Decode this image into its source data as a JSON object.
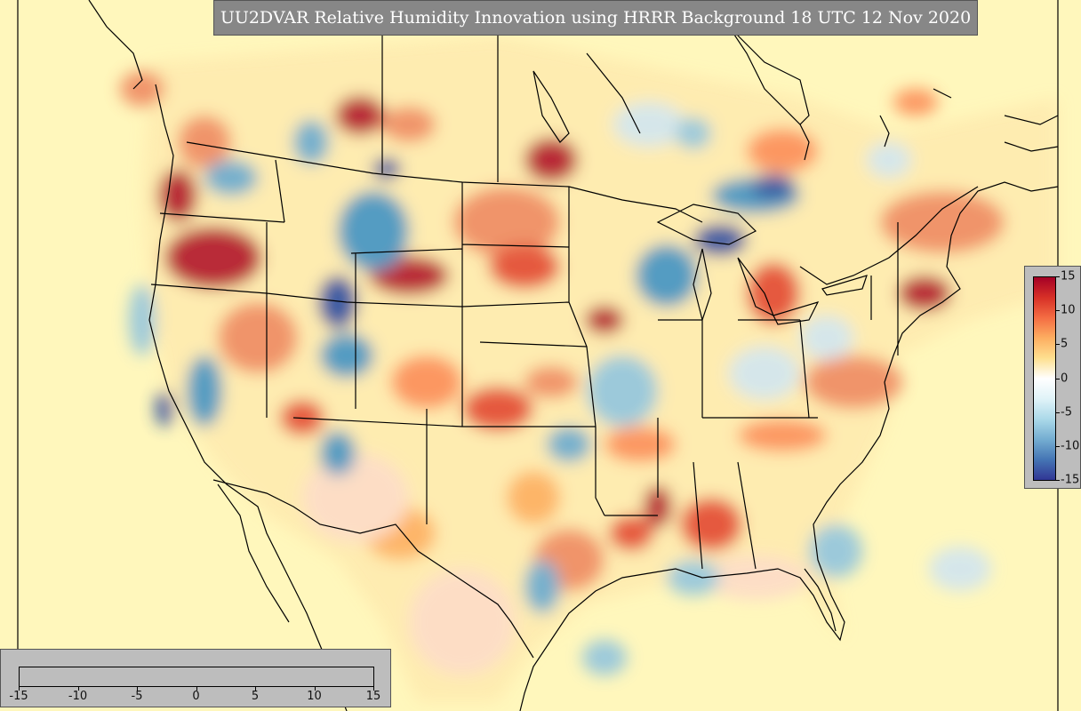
{
  "title": "UU2DVAR Relative Humidity Innovation using HRRR Background 18 UTC 12 Nov 2020",
  "colorbar": {
    "ticks": [
      "-15",
      "-10",
      "-5",
      "0",
      "5",
      "10",
      "15"
    ],
    "range": [
      -15,
      15
    ],
    "colors": [
      "#313695",
      "#4575b4",
      "#74add1",
      "#abd9e9",
      "#e0f3f8",
      "#ffffff",
      "#fee090",
      "#fdae61",
      "#f46d43",
      "#d73027",
      "#a50026"
    ]
  },
  "colors": {
    "background": "#fff7bc",
    "strong_positive": "#b2182b",
    "positive": "#ef8a62",
    "weak_positive": "#fddbc7",
    "weak_negative": "#d1e5f0",
    "negative": "#67a9cf",
    "strong_negative": "#2c4da0",
    "coastline": "#000000"
  }
}
